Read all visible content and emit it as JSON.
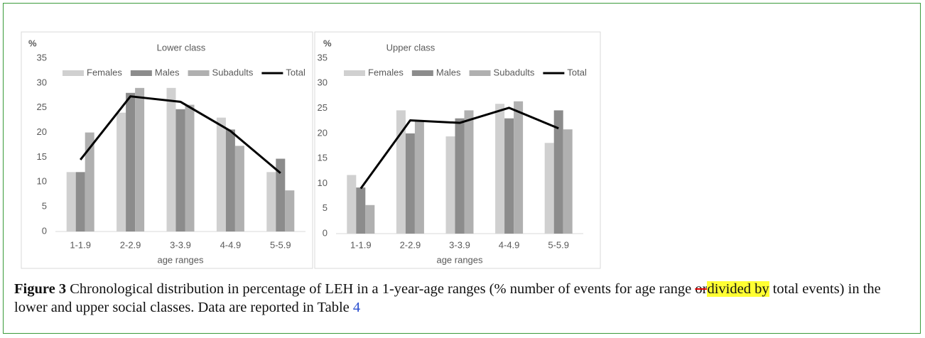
{
  "chart_data": [
    {
      "type": "bar",
      "title": "Lower class",
      "y_label": "%",
      "x_label": "age ranges",
      "categories": [
        "1-1.9",
        "2-2.9",
        "3-3.9",
        "4-4.9",
        "5-5.9"
      ],
      "series": [
        {
          "name": "Females",
          "color": "#d0d0d0",
          "values": [
            12,
            24,
            29,
            23,
            12
          ]
        },
        {
          "name": "Males",
          "color": "#8c8c8c",
          "values": [
            12,
            28,
            24.7,
            20.6,
            14.7
          ]
        },
        {
          "name": "Subadults",
          "color": "#b0b0b0",
          "values": [
            20,
            29,
            25.6,
            17.3,
            8.3
          ]
        },
        {
          "name": "Total",
          "type": "line",
          "color": "#000000",
          "values": [
            14.5,
            27.3,
            26.2,
            20.3,
            11.8
          ]
        }
      ],
      "ylim": [
        0,
        35
      ],
      "yticks": [
        0,
        5,
        10,
        15,
        20,
        25,
        30,
        35
      ],
      "grid": false
    },
    {
      "type": "bar",
      "title": "Upper class",
      "y_label": "%",
      "x_label": "age ranges",
      "categories": [
        "1-1.9",
        "2-2.9",
        "3-3.9",
        "4-4.9",
        "5-5.9"
      ],
      "series": [
        {
          "name": "Females",
          "color": "#d0d0d0",
          "values": [
            11.7,
            24.6,
            19.4,
            25.9,
            18.1
          ]
        },
        {
          "name": "Males",
          "color": "#8c8c8c",
          "values": [
            9.2,
            20,
            23,
            23,
            24.6
          ]
        },
        {
          "name": "Subadults",
          "color": "#b0b0b0",
          "values": [
            5.7,
            22.6,
            24.6,
            26.4,
            20.8
          ]
        },
        {
          "name": "Total",
          "type": "line",
          "color": "#000000",
          "values": [
            9,
            22.6,
            22.1,
            25.1,
            21
          ]
        }
      ],
      "ylim": [
        0,
        35
      ],
      "yticks": [
        0,
        5,
        10,
        15,
        20,
        25,
        30,
        35
      ],
      "grid": false
    }
  ],
  "caption": {
    "label": "Figure 3",
    "text_1": " Chronological distribution in percentage of LEH in a 1-year-age ranges (% number of events for age range ",
    "deleted": "or",
    "inserted": "divided by",
    "text_2": " total events) in the lower and upper social classes. Data are reported in Table ",
    "link": "4"
  }
}
